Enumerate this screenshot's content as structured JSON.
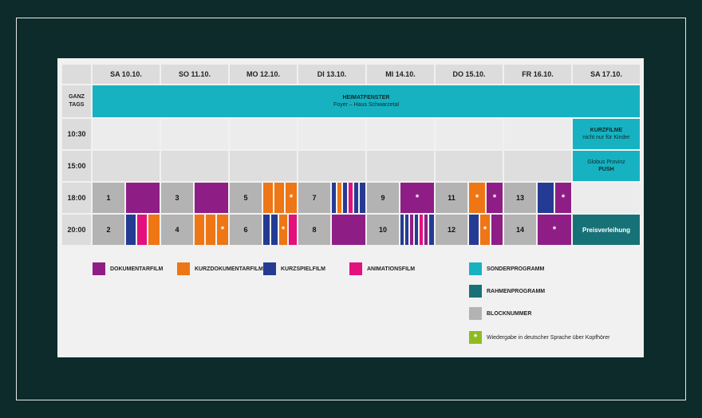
{
  "colors": {
    "doku": "#8e1e86",
    "kurzdoku": "#ee7614",
    "kurzspiel": "#253b93",
    "anim": "#e3107e",
    "sonder": "#17b2c2",
    "rahmen": "#177278",
    "block": "#b3b3b3",
    "green": "#8fbb22"
  },
  "days": [
    "SA 10.10.",
    "SO 11.10.",
    "MO 12.10.",
    "DI 13.10.",
    "MI 14.10.",
    "DO 15.10.",
    "FR 16.10.",
    "SA 17.10."
  ],
  "rows": {
    "ganztags": "GANZ TAGS",
    "r1030": "10:30",
    "r1500": "15:00",
    "r1800": "18:00",
    "r2000": "20:00"
  },
  "heimat": {
    "title": "HEIMATFENSTER",
    "sub": "Foyer – Haus Schwarzetal"
  },
  "kurzfilme": {
    "title": "KURZFILME",
    "sub": "nicht nur für Kinder"
  },
  "globus": {
    "line1": "Globus Provinz",
    "line2": "PUSH"
  },
  "preis": "Preisverleihung",
  "blocks": {
    "b1": "1",
    "b2": "2",
    "b3": "3",
    "b4": "4",
    "b5": "5",
    "b6": "6",
    "b7": "7",
    "b8": "8",
    "b9": "9",
    "b10": "10",
    "b11": "11",
    "b12": "12",
    "b13": "13",
    "b14": "14"
  },
  "star": "*",
  "legend": {
    "doku": "DOKUMENTARFILM",
    "kurzdoku": "KURZDOKUMENTARFILM",
    "kurzspiel": "KURZSPIELFILM",
    "anim": "ANIMATIONSFILM",
    "sonder": "SONDERPROGRAMM",
    "rahmen": "RAHMENPROGRAMM",
    "block": "BLOCKNUMMER",
    "kopfhoerer": "Wiedergabe in deutscher Sprache über Kopfhörer"
  }
}
